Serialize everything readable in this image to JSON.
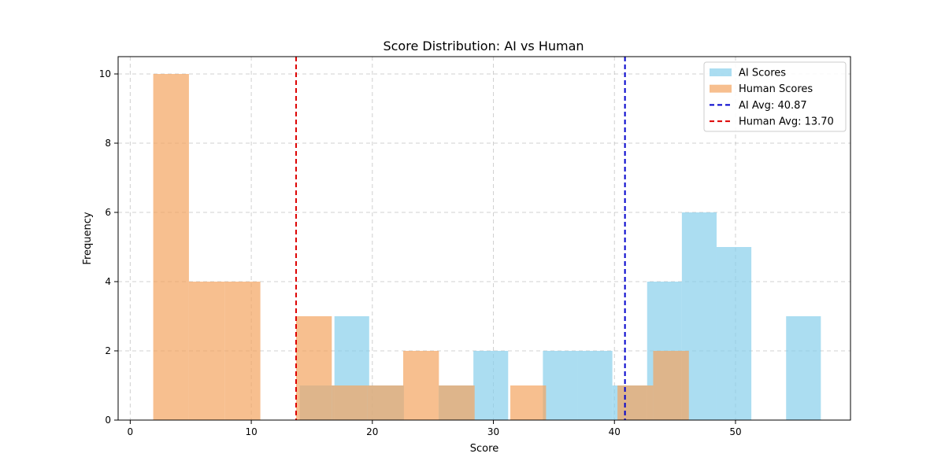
{
  "chart_data": {
    "type": "histogram",
    "title": "Score Distribution: AI vs Human",
    "xlabel": "Score",
    "ylabel": "Frequency",
    "xlim": [
      -1.0,
      59.5
    ],
    "ylim": [
      0,
      10.5
    ],
    "xticks": [
      0,
      10,
      20,
      30,
      40,
      50
    ],
    "yticks": [
      0,
      2,
      4,
      6,
      8,
      10
    ],
    "grid": true,
    "legend_position": "top-right",
    "series": [
      {
        "name": "AI Scores",
        "color": "#87ceeb",
        "opacity": 0.7,
        "bins": [
          {
            "x0": 14.0,
            "x1": 16.87,
            "count": 1
          },
          {
            "x0": 16.87,
            "x1": 19.74,
            "count": 3
          },
          {
            "x0": 19.74,
            "x1": 22.61,
            "count": 1
          },
          {
            "x0": 22.61,
            "x1": 25.48,
            "count": 0
          },
          {
            "x0": 25.48,
            "x1": 28.35,
            "count": 1
          },
          {
            "x0": 28.35,
            "x1": 31.22,
            "count": 2
          },
          {
            "x0": 31.22,
            "x1": 34.09,
            "count": 0
          },
          {
            "x0": 34.09,
            "x1": 36.96,
            "count": 2
          },
          {
            "x0": 36.96,
            "x1": 39.83,
            "count": 2
          },
          {
            "x0": 39.83,
            "x1": 42.7,
            "count": 1
          },
          {
            "x0": 42.7,
            "x1": 45.57,
            "count": 4
          },
          {
            "x0": 45.57,
            "x1": 48.44,
            "count": 6
          },
          {
            "x0": 48.44,
            "x1": 51.31,
            "count": 5
          },
          {
            "x0": 51.31,
            "x1": 54.18,
            "count": 0
          },
          {
            "x0": 54.18,
            "x1": 57.05,
            "count": 3
          }
        ]
      },
      {
        "name": "Human Scores",
        "color": "#f4a460",
        "opacity": 0.7,
        "bins": [
          {
            "x0": 1.9,
            "x1": 4.85,
            "count": 10
          },
          {
            "x0": 4.85,
            "x1": 7.8,
            "count": 4
          },
          {
            "x0": 7.8,
            "x1": 10.75,
            "count": 4
          },
          {
            "x0": 10.75,
            "x1": 13.7,
            "count": 0
          },
          {
            "x0": 13.7,
            "x1": 16.65,
            "count": 3
          },
          {
            "x0": 16.65,
            "x1": 19.6,
            "count": 1
          },
          {
            "x0": 19.6,
            "x1": 22.55,
            "count": 1
          },
          {
            "x0": 22.55,
            "x1": 25.5,
            "count": 2
          },
          {
            "x0": 25.5,
            "x1": 28.45,
            "count": 1
          },
          {
            "x0": 28.45,
            "x1": 31.4,
            "count": 0
          },
          {
            "x0": 31.4,
            "x1": 34.35,
            "count": 1
          },
          {
            "x0": 34.35,
            "x1": 37.3,
            "count": 0
          },
          {
            "x0": 37.3,
            "x1": 40.25,
            "count": 0
          },
          {
            "x0": 40.25,
            "x1": 43.2,
            "count": 1
          },
          {
            "x0": 43.2,
            "x1": 46.15,
            "count": 2
          }
        ]
      }
    ],
    "reference_lines": [
      {
        "name": "AI Avg: 40.87",
        "x": 40.87,
        "color": "#0000cc",
        "style": "dashed"
      },
      {
        "name": "Human Avg: 13.70",
        "x": 13.7,
        "color": "#dd0000",
        "style": "dashed"
      }
    ]
  }
}
